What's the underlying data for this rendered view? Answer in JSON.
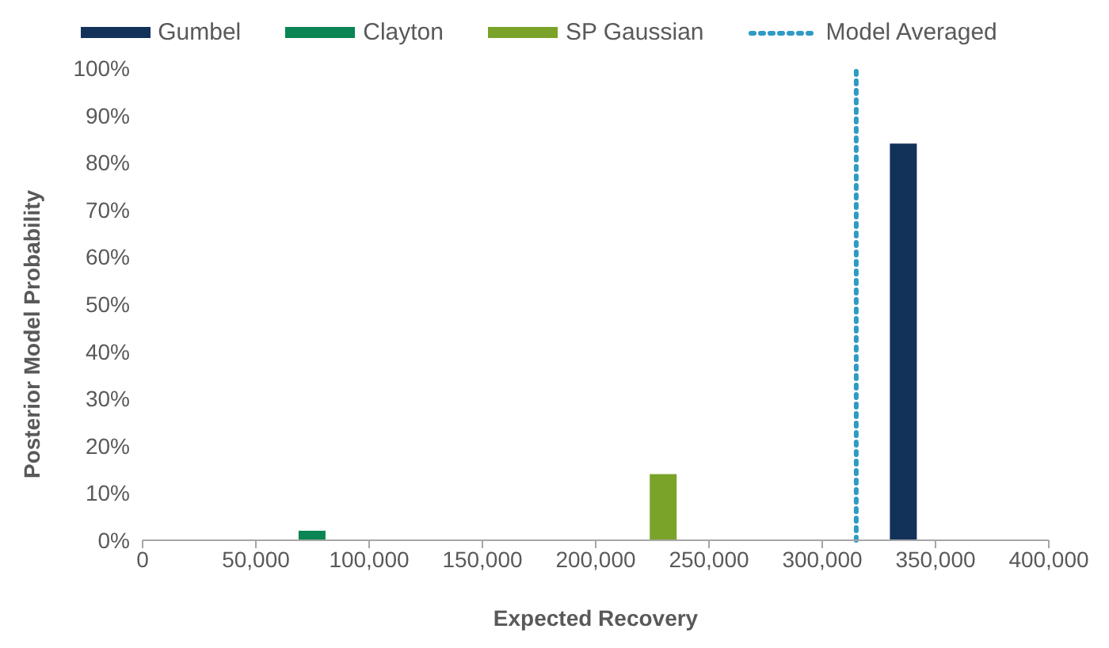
{
  "chart_data": {
    "type": "bar",
    "xlabel": "Expected Recovery",
    "ylabel": "Posterior Model Probability",
    "series": [
      {
        "name": "Gumbel",
        "color": "#12325a",
        "x": [
          336000
        ],
        "values": [
          84
        ]
      },
      {
        "name": "Clayton",
        "color": "#0b8553",
        "x": [
          75000
        ],
        "values": [
          2
        ]
      },
      {
        "name": "SP Gaussian",
        "color": "#7aa329",
        "x": [
          230000
        ],
        "values": [
          14
        ]
      }
    ],
    "ref_lines": [
      {
        "axis": "x",
        "value": 315000,
        "label": "Model Averaged",
        "color": "#2f9ac4",
        "line_style": "dotted"
      }
    ],
    "xlim": [
      0,
      400000
    ],
    "xticks": [
      0,
      {
        "value": 50000,
        "label": "50,000"
      },
      {
        "value": 100000,
        "label": "100,000"
      },
      {
        "value": 150000,
        "label": "150,000"
      },
      {
        "value": 200000,
        "label": "200,000"
      },
      {
        "value": 250000,
        "label": "250,000"
      },
      {
        "value": 300000,
        "label": "300,000"
      },
      {
        "value": 350000,
        "label": "350,000"
      },
      {
        "value": 400000,
        "label": "400,000"
      }
    ],
    "ylim": [
      0,
      100
    ],
    "yticks": [
      {
        "value": 0,
        "label": "0%"
      },
      {
        "value": 10,
        "label": "10%"
      },
      {
        "value": 20,
        "label": "20%"
      },
      {
        "value": 30,
        "label": "30%"
      },
      {
        "value": 40,
        "label": "40%"
      },
      {
        "value": 50,
        "label": "50%"
      },
      {
        "value": 60,
        "label": "60%"
      },
      {
        "value": 70,
        "label": "70%"
      },
      {
        "value": 80,
        "label": "80%"
      },
      {
        "value": 90,
        "label": "90%"
      },
      {
        "value": 100,
        "label": "100%"
      }
    ],
    "grid": false,
    "legend": "top"
  }
}
